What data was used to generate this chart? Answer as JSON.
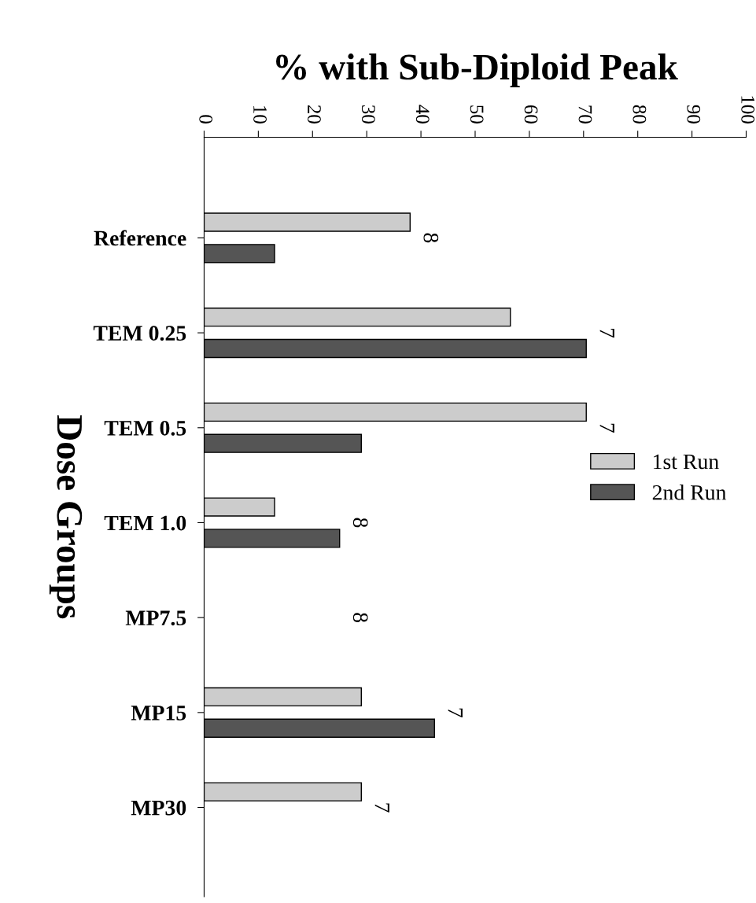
{
  "chart_data": {
    "type": "bar",
    "orientation": "horizontal",
    "xlabel": "% with Sub-Diploid Peak",
    "ylabel": "Dose Groups",
    "categories": [
      "Reference",
      "TEM 0.25",
      "TEM 0.5",
      "TEM 1.0",
      "MP7.5",
      "MP15",
      "MP30"
    ],
    "series": [
      {
        "name": "1st Run",
        "color": "#cccccc",
        "values": [
          38,
          56.5,
          70.5,
          13,
          null,
          29,
          29
        ]
      },
      {
        "name": "2nd Run",
        "color": "#555555",
        "values": [
          13,
          70.5,
          29,
          25,
          null,
          42.5,
          null
        ]
      }
    ],
    "xlim": [
      0,
      100
    ],
    "xticks": [
      0,
      10,
      20,
      30,
      40,
      50,
      60,
      70,
      80,
      90,
      100
    ],
    "annotations": [
      "8",
      "7",
      "7",
      "8",
      "8",
      "7",
      "7"
    ],
    "legend": "right",
    "grid": false
  }
}
